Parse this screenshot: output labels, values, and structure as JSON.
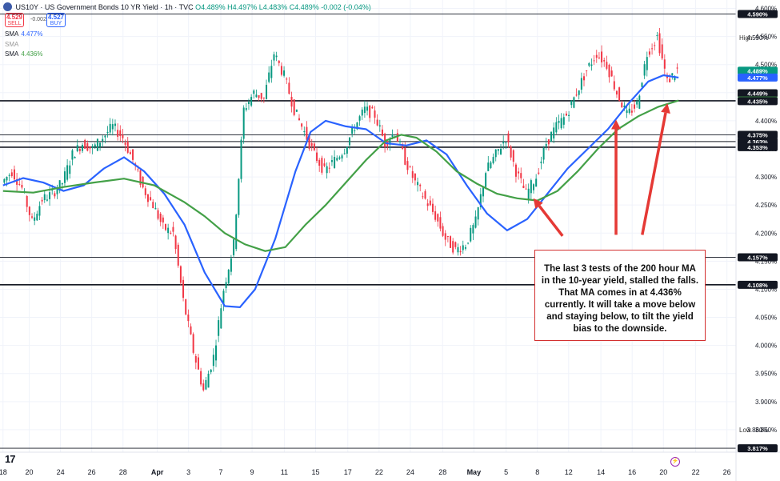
{
  "header": {
    "symbol": "US10Y",
    "title": "US Government Bonds 10 YR Yield · 1h · TVC",
    "ohlc": "O4.489% H4.497% L4.483% C4.489% -0.002 (-0.04%)",
    "sell_label": "SELL",
    "sell_value": "4.529",
    "buy_label": "BUY",
    "buy_value": "4.527",
    "spread": "-0.002"
  },
  "indicators": [
    {
      "label": "SMA",
      "value": "4.477%",
      "color": "#2962ff"
    },
    {
      "label": "SMA",
      "value": "",
      "color": "#43a047"
    },
    {
      "label": "SMA",
      "value": "4.436%",
      "color": "#43a047"
    }
  ],
  "annotation": "The last 3 tests of the 200 hour MA in the 10-year yield, stalled the falls. That MA comes in at 4.436% currently.  It will take a move below and staying below, to tilt the yield bias to the downside.",
  "high_label": "High",
  "low_label": "Low",
  "branding": "17",
  "chart_data": {
    "type": "line",
    "x_axis": {
      "ticks": [
        "18",
        "20",
        "24",
        "26",
        "28",
        "Apr",
        "3",
        "7",
        "9",
        "11",
        "15",
        "17",
        "22",
        "24",
        "28",
        "May",
        "5",
        "8",
        "12",
        "14",
        "16",
        "20",
        "22",
        "26"
      ],
      "tick_idx": [
        0,
        2.6,
        5.7,
        8.8,
        11.9,
        15.3,
        18.4,
        21.6,
        24.7,
        27.9,
        31,
        34.2,
        37.3,
        40.4,
        43.6,
        46.7,
        49.9,
        53,
        56.1,
        59.3,
        62.4,
        65.5,
        68.7,
        71.8
      ]
    },
    "y_axis": {
      "ylim": [
        3.81,
        4.615
      ],
      "ticks": [
        3.85,
        3.9,
        3.95,
        4.0,
        4.05,
        4.1,
        4.15,
        4.2,
        4.25,
        4.3,
        4.35,
        4.4,
        4.45,
        4.5,
        4.55,
        4.6
      ],
      "tick_labels": [
        "3.850%",
        "3.900%",
        "3.950%",
        "4.000%",
        "4.050%",
        "4.100%",
        "4.150%",
        "4.200%",
        "4.250%",
        "4.300%",
        "4.350%",
        "4.400%",
        "4.450%",
        "4.500%",
        "4.550%",
        "4.600%"
      ]
    },
    "horizontal_levels": [
      {
        "value": 4.59,
        "label": "4.590%"
      },
      {
        "value": 4.436,
        "label": "4.436%"
      },
      {
        "value": 4.435,
        "label": "4.435%"
      },
      {
        "value": 4.375,
        "label": "4.375%"
      },
      {
        "value": 4.363,
        "label": "4.363%"
      },
      {
        "value": 4.353,
        "label": "4.353%"
      },
      {
        "value": 4.157,
        "label": "4.157%"
      },
      {
        "value": 4.108,
        "label": "4.108%"
      },
      {
        "value": 3.817,
        "label": "3.817%"
      }
    ],
    "price_badges": [
      {
        "value": 4.59,
        "label": "4.590%",
        "color": "#131722"
      },
      {
        "value": 4.489,
        "label": "4.489%",
        "color": "#089981"
      },
      {
        "value": 4.477,
        "label": "4.477%",
        "color": "#2962ff"
      },
      {
        "value": 4.449,
        "label": "4.449%",
        "color": "#131722"
      },
      {
        "value": 4.436,
        "label": "4.436%",
        "color": "#43a047"
      },
      {
        "value": 4.435,
        "label": "4.435%",
        "color": "#131722"
      },
      {
        "value": 4.375,
        "label": "4.375%",
        "color": "#131722"
      },
      {
        "value": 4.363,
        "label": "4.363%",
        "color": "#131722"
      },
      {
        "value": 4.353,
        "label": "4.353%",
        "color": "#131722"
      },
      {
        "value": 4.157,
        "label": "4.157%",
        "color": "#131722"
      },
      {
        "value": 4.108,
        "label": "4.108%",
        "color": "#131722"
      },
      {
        "value": 3.817,
        "label": "3.817%",
        "color": "#131722"
      }
    ],
    "high": {
      "value": 4.59,
      "label": "4.590%"
    },
    "low": {
      "value": 3.86,
      "label": "3.860%"
    },
    "price_series": {
      "name": "US10Y",
      "up_color": "#089981",
      "down_color": "#f23645",
      "points": [
        [
          0,
          4.29
        ],
        [
          1,
          4.31
        ],
        [
          2,
          4.28
        ],
        [
          3,
          4.22
        ],
        [
          4,
          4.26
        ],
        [
          5,
          4.27
        ],
        [
          6,
          4.29
        ],
        [
          7,
          4.34
        ],
        [
          8,
          4.36
        ],
        [
          9,
          4.35
        ],
        [
          10,
          4.37
        ],
        [
          11,
          4.39
        ],
        [
          12,
          4.37
        ],
        [
          13,
          4.33
        ],
        [
          14,
          4.28
        ],
        [
          15,
          4.25
        ],
        [
          16,
          4.21
        ],
        [
          17,
          4.2
        ],
        [
          18,
          4.08
        ],
        [
          19,
          3.99
        ],
        [
          20,
          3.92
        ],
        [
          21,
          3.98
        ],
        [
          22,
          4.1
        ],
        [
          23,
          4.18
        ],
        [
          24,
          4.42
        ],
        [
          25,
          4.45
        ],
        [
          26,
          4.44
        ],
        [
          27,
          4.52
        ],
        [
          28,
          4.48
        ],
        [
          29,
          4.42
        ],
        [
          30,
          4.38
        ],
        [
          31,
          4.34
        ],
        [
          32,
          4.31
        ],
        [
          33,
          4.33
        ],
        [
          34,
          4.35
        ],
        [
          35,
          4.39
        ],
        [
          36,
          4.42
        ],
        [
          37,
          4.41
        ],
        [
          38,
          4.36
        ],
        [
          39,
          4.38
        ],
        [
          40,
          4.33
        ],
        [
          41,
          4.29
        ],
        [
          42,
          4.26
        ],
        [
          43,
          4.23
        ],
        [
          44,
          4.19
        ],
        [
          45,
          4.17
        ],
        [
          46,
          4.18
        ],
        [
          47,
          4.22
        ],
        [
          48,
          4.31
        ],
        [
          49,
          4.34
        ],
        [
          50,
          4.37
        ],
        [
          51,
          4.31
        ],
        [
          52,
          4.27
        ],
        [
          53,
          4.3
        ],
        [
          54,
          4.36
        ],
        [
          55,
          4.39
        ],
        [
          56,
          4.41
        ],
        [
          57,
          4.45
        ],
        [
          58,
          4.49
        ],
        [
          59,
          4.52
        ],
        [
          60,
          4.5
        ],
        [
          61,
          4.45
        ],
        [
          62,
          4.41
        ],
        [
          63,
          4.43
        ],
        [
          64,
          4.52
        ],
        [
          65,
          4.55
        ],
        [
          66,
          4.47
        ],
        [
          67,
          4.49
        ]
      ]
    },
    "series": [
      {
        "name": "SMA",
        "color": "#2962ff",
        "points": [
          [
            0,
            4.285
          ],
          [
            2,
            4.298
          ],
          [
            4,
            4.29
          ],
          [
            6,
            4.275
          ],
          [
            8,
            4.285
          ],
          [
            10,
            4.315
          ],
          [
            12,
            4.335
          ],
          [
            14,
            4.31
          ],
          [
            16,
            4.27
          ],
          [
            18,
            4.215
          ],
          [
            20,
            4.13
          ],
          [
            22,
            4.07
          ],
          [
            23.5,
            4.068
          ],
          [
            25,
            4.1
          ],
          [
            27,
            4.19
          ],
          [
            29,
            4.31
          ],
          [
            30.5,
            4.38
          ],
          [
            32,
            4.4
          ],
          [
            34,
            4.39
          ],
          [
            36,
            4.385
          ],
          [
            38,
            4.36
          ],
          [
            40,
            4.356
          ],
          [
            42,
            4.365
          ],
          [
            44,
            4.34
          ],
          [
            46,
            4.285
          ],
          [
            48,
            4.235
          ],
          [
            50,
            4.205
          ],
          [
            52,
            4.225
          ],
          [
            54,
            4.27
          ],
          [
            56,
            4.315
          ],
          [
            58,
            4.35
          ],
          [
            60,
            4.385
          ],
          [
            62,
            4.43
          ],
          [
            64,
            4.47
          ],
          [
            65.5,
            4.481
          ],
          [
            67,
            4.477
          ]
        ]
      },
      {
        "name": "SMA",
        "color": "#43a047",
        "points": [
          [
            0,
            4.275
          ],
          [
            3,
            4.272
          ],
          [
            6,
            4.282
          ],
          [
            9,
            4.29
          ],
          [
            12,
            4.297
          ],
          [
            15,
            4.285
          ],
          [
            18,
            4.255
          ],
          [
            20,
            4.23
          ],
          [
            22,
            4.2
          ],
          [
            24,
            4.18
          ],
          [
            26,
            4.168
          ],
          [
            28,
            4.175
          ],
          [
            30,
            4.215
          ],
          [
            32,
            4.25
          ],
          [
            34,
            4.29
          ],
          [
            36,
            4.33
          ],
          [
            38,
            4.365
          ],
          [
            39.5,
            4.375
          ],
          [
            41,
            4.37
          ],
          [
            43,
            4.345
          ],
          [
            45,
            4.31
          ],
          [
            47,
            4.288
          ],
          [
            49,
            4.27
          ],
          [
            51,
            4.262
          ],
          [
            53,
            4.258
          ],
          [
            55,
            4.275
          ],
          [
            57,
            4.31
          ],
          [
            59,
            4.35
          ],
          [
            61,
            4.385
          ],
          [
            63,
            4.408
          ],
          [
            65,
            4.425
          ],
          [
            67,
            4.436
          ]
        ]
      }
    ],
    "arrows": [
      {
        "from": [
          55.5,
          4.195
        ],
        "to": [
          52.6,
          4.262
        ],
        "color": "#e53935"
      },
      {
        "from": [
          60.8,
          4.197
        ],
        "to": [
          60.8,
          4.402
        ],
        "color": "#e53935"
      },
      {
        "from": [
          63.4,
          4.197
        ],
        "to": [
          65.9,
          4.431
        ],
        "color": "#e53935"
      }
    ]
  }
}
